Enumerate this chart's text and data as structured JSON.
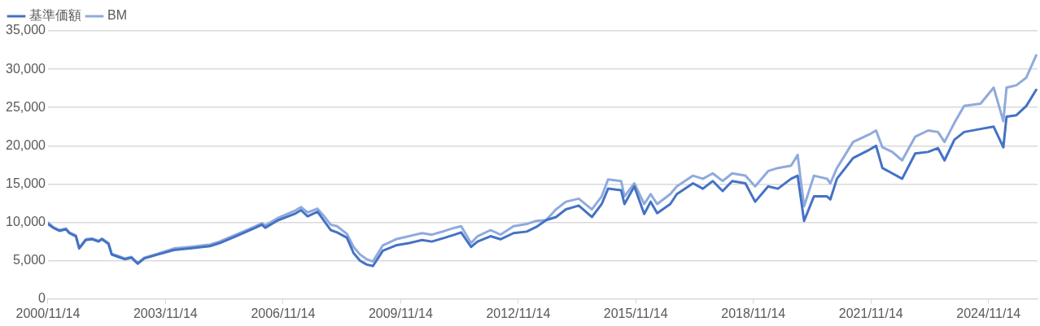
{
  "chart_data": {
    "type": "line",
    "x": [
      "2000-11-14",
      "2001-01",
      "2001-03",
      "2001-05",
      "2001-06",
      "2001-08",
      "2001-09",
      "2001-11",
      "2002-01",
      "2002-03",
      "2002-04",
      "2002-06",
      "2002-07",
      "2002-09",
      "2002-11",
      "2003-01",
      "2003-03",
      "2003-05",
      "2003-09",
      "2004-02",
      "2004-07",
      "2005-01",
      "2005-04",
      "2005-09",
      "2006-03",
      "2006-05",
      "2006-06",
      "2006-10",
      "2007-03",
      "2007-05",
      "2007-07",
      "2007-10",
      "2007-12",
      "2008-02",
      "2008-04",
      "2008-07",
      "2008-09",
      "2008-11",
      "2009-01",
      "2009-03",
      "2009-06",
      "2009-10",
      "2010-02",
      "2010-06",
      "2010-09",
      "2011-01",
      "2011-04",
      "2011-06",
      "2011-09",
      "2011-11",
      "2012-03",
      "2012-06",
      "2012-10",
      "2013-02",
      "2013-05",
      "2013-08",
      "2013-11",
      "2014-02",
      "2014-06",
      "2014-10",
      "2015-01",
      "2015-03",
      "2015-07",
      "2015-08",
      "2015-11",
      "2016-02",
      "2016-04",
      "2016-06",
      "2016-10",
      "2016-12",
      "2017-05",
      "2017-08",
      "2017-11",
      "2018-02",
      "2018-05",
      "2018-09",
      "2018-12",
      "2019-04",
      "2019-07",
      "2019-11",
      "2020-01",
      "2020-03",
      "2020-06",
      "2020-10",
      "2020-11",
      "2021-01",
      "2021-06",
      "2021-11",
      "2022-01",
      "2022-03",
      "2022-06",
      "2022-09",
      "2023-01",
      "2023-05",
      "2023-08",
      "2023-10",
      "2024-01",
      "2024-04",
      "2024-09",
      "2025-01",
      "2025-04",
      "2025-05",
      "2025-08",
      "2025-11",
      "2026-02"
    ],
    "series": [
      {
        "name": "基準価額",
        "color": "#4472c4",
        "values": [
          9800,
          9300,
          8900,
          9100,
          8600,
          8200,
          6600,
          7700,
          7800,
          7500,
          7800,
          7200,
          5800,
          5500,
          5200,
          5400,
          4600,
          5300,
          5800,
          6400,
          6600,
          6900,
          7300,
          8200,
          9300,
          9700,
          9300,
          10300,
          11100,
          11600,
          10800,
          11400,
          10200,
          9000,
          8700,
          8000,
          6000,
          5000,
          4500,
          4300,
          6300,
          7000,
          7300,
          7700,
          7500,
          8000,
          8400,
          8700,
          6800,
          7500,
          8200,
          7800,
          8600,
          8800,
          9400,
          10300,
          10700,
          11700,
          12200,
          10700,
          12400,
          14400,
          14200,
          12400,
          14700,
          11100,
          12700,
          11200,
          12400,
          13700,
          15100,
          14400,
          15400,
          14100,
          15400,
          15100,
          12700,
          14700,
          14400,
          15700,
          16100,
          10200,
          13400,
          13400,
          13000,
          15700,
          18400,
          19500,
          20000,
          17100,
          16400,
          15700,
          19000,
          19200,
          19700,
          18100,
          20800,
          21800,
          22200,
          22500,
          19800,
          23800,
          24000,
          25200,
          27300
        ]
      },
      {
        "name": "BM",
        "color": "#8faadc",
        "values": [
          10000,
          9400,
          9000,
          9200,
          8700,
          8300,
          6700,
          7800,
          7900,
          7600,
          7900,
          7300,
          5900,
          5600,
          5300,
          5500,
          4700,
          5400,
          5900,
          6600,
          6800,
          7100,
          7500,
          8400,
          9500,
          9900,
          9600,
          10600,
          11500,
          12000,
          11300,
          11800,
          10800,
          9700,
          9500,
          8500,
          6800,
          5800,
          5200,
          4900,
          7000,
          7800,
          8200,
          8600,
          8400,
          8900,
          9300,
          9500,
          7300,
          8200,
          9000,
          8400,
          9500,
          9800,
          10200,
          10300,
          11700,
          12700,
          13100,
          11700,
          13400,
          15600,
          15400,
          13400,
          15100,
          12400,
          13700,
          12400,
          13700,
          14700,
          16100,
          15700,
          16400,
          15400,
          16400,
          16100,
          14700,
          16700,
          17100,
          17400,
          18800,
          12100,
          16100,
          15700,
          15100,
          17100,
          20500,
          21500,
          22000,
          19800,
          19200,
          18100,
          21200,
          22000,
          21800,
          20500,
          23000,
          25200,
          25500,
          27600,
          23200,
          27600,
          27900,
          28900,
          31800
        ]
      }
    ],
    "xlim": [
      "2000-11-14",
      "2026-02-14"
    ],
    "xticks": [
      {
        "value": "2000-11-14",
        "label": "2000/11/14"
      },
      {
        "value": "2003-11-14",
        "label": "2003/11/14"
      },
      {
        "value": "2006-11-14",
        "label": "2006/11/14"
      },
      {
        "value": "2009-11-14",
        "label": "2009/11/14"
      },
      {
        "value": "2012-11-14",
        "label": "2012/11/14"
      },
      {
        "value": "2015-11-14",
        "label": "2015/11/14"
      },
      {
        "value": "2018-11-14",
        "label": "2018/11/14"
      },
      {
        "value": "2021-11-14",
        "label": "2021/11/14"
      },
      {
        "value": "2024-11-14",
        "label": "2024/11/14"
      }
    ],
    "ylim": [
      0,
      35000
    ],
    "yticks": [
      0,
      {
        "value": 5000,
        "label": "5,000"
      },
      {
        "value": 10000,
        "label": "10,000"
      },
      {
        "value": 15000,
        "label": "15,000"
      },
      {
        "value": 20000,
        "label": "20,000"
      },
      {
        "value": 25000,
        "label": "25,000"
      },
      {
        "value": 30000,
        "label": "30,000"
      },
      {
        "value": 35000,
        "label": "35,000"
      }
    ],
    "grid": "y",
    "legend": "top left",
    "marker": "none",
    "line_style": "solid"
  }
}
